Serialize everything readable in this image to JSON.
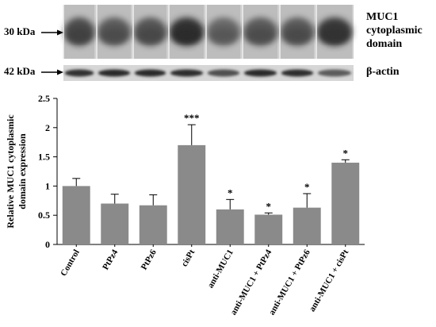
{
  "blots": {
    "top_marker": "30 kDa",
    "bottom_marker": "42 kDa",
    "top_protein_line1": "MUC1",
    "top_protein_line2": "cytoplasmic",
    "top_protein_line3": "domain",
    "bottom_protein": "β-actin"
  },
  "chart_data": {
    "type": "bar",
    "title": "",
    "xlabel": "",
    "ylabel_line1": "Relative MUC1  cytoplasmic",
    "ylabel_line2": "domain expression",
    "ylim": [
      0,
      2.5
    ],
    "yticks": [
      "0",
      "0.5",
      "1",
      "1.5",
      "2",
      "2.5"
    ],
    "grid": false,
    "bar_color": "#8a8a8a",
    "categories": [
      "Control",
      "PtPz4",
      "PtPz6",
      "cisPt",
      "anti-MUC1",
      "anti-MUC1 + PtPz4",
      "anti-MUC1 + PtPz6",
      "anti-MUC1 + cisPt"
    ],
    "values": [
      1.0,
      0.7,
      0.67,
      1.7,
      0.6,
      0.51,
      0.63,
      1.4
    ],
    "errors": [
      0.13,
      0.16,
      0.18,
      0.35,
      0.17,
      0.03,
      0.24,
      0.05
    ],
    "significance": [
      "",
      "",
      "",
      "***",
      "*",
      "*",
      "*",
      "*"
    ]
  }
}
